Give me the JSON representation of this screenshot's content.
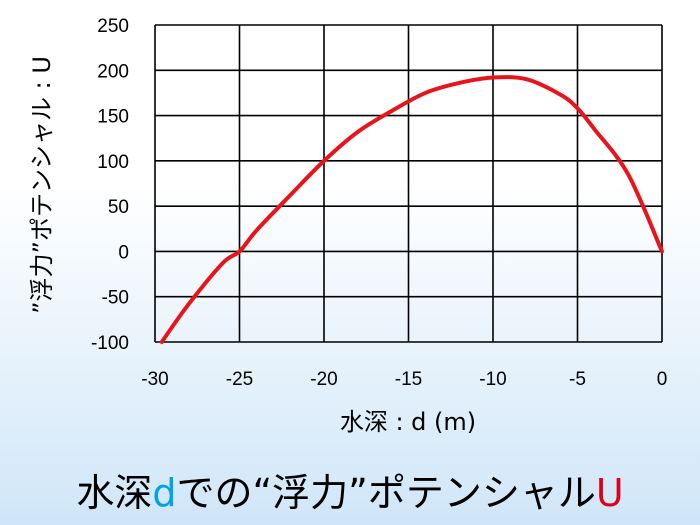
{
  "chart_data": {
    "type": "line",
    "title": "",
    "xlabel": "水深 : d (m)",
    "ylabel": "”浮力”ポテンシャル : U",
    "xlim": [
      -30,
      0
    ],
    "ylim": [
      -100,
      250
    ],
    "xticks": [
      -30,
      -25,
      -20,
      -15,
      -10,
      -5,
      0
    ],
    "yticks": [
      -100,
      -50,
      0,
      50,
      100,
      150,
      200,
      250
    ],
    "grid": true,
    "series": [
      {
        "color": "#e8141b",
        "x": [
          -29.6,
          -28,
          -26,
          -25,
          -24,
          -22,
          -20,
          -18,
          -16,
          -14,
          -12,
          -10,
          -8,
          -6,
          -5,
          -4,
          -2,
          0
        ],
        "y": [
          -100,
          -58,
          -13,
          0,
          23,
          62,
          100,
          132,
          155,
          175,
          186,
          192,
          190,
          173,
          158,
          135,
          85,
          0
        ]
      }
    ]
  },
  "caption": {
    "part1": "水深",
    "var_d": "d",
    "part2": "での“浮力”ポテンシャル",
    "var_u": "U"
  }
}
